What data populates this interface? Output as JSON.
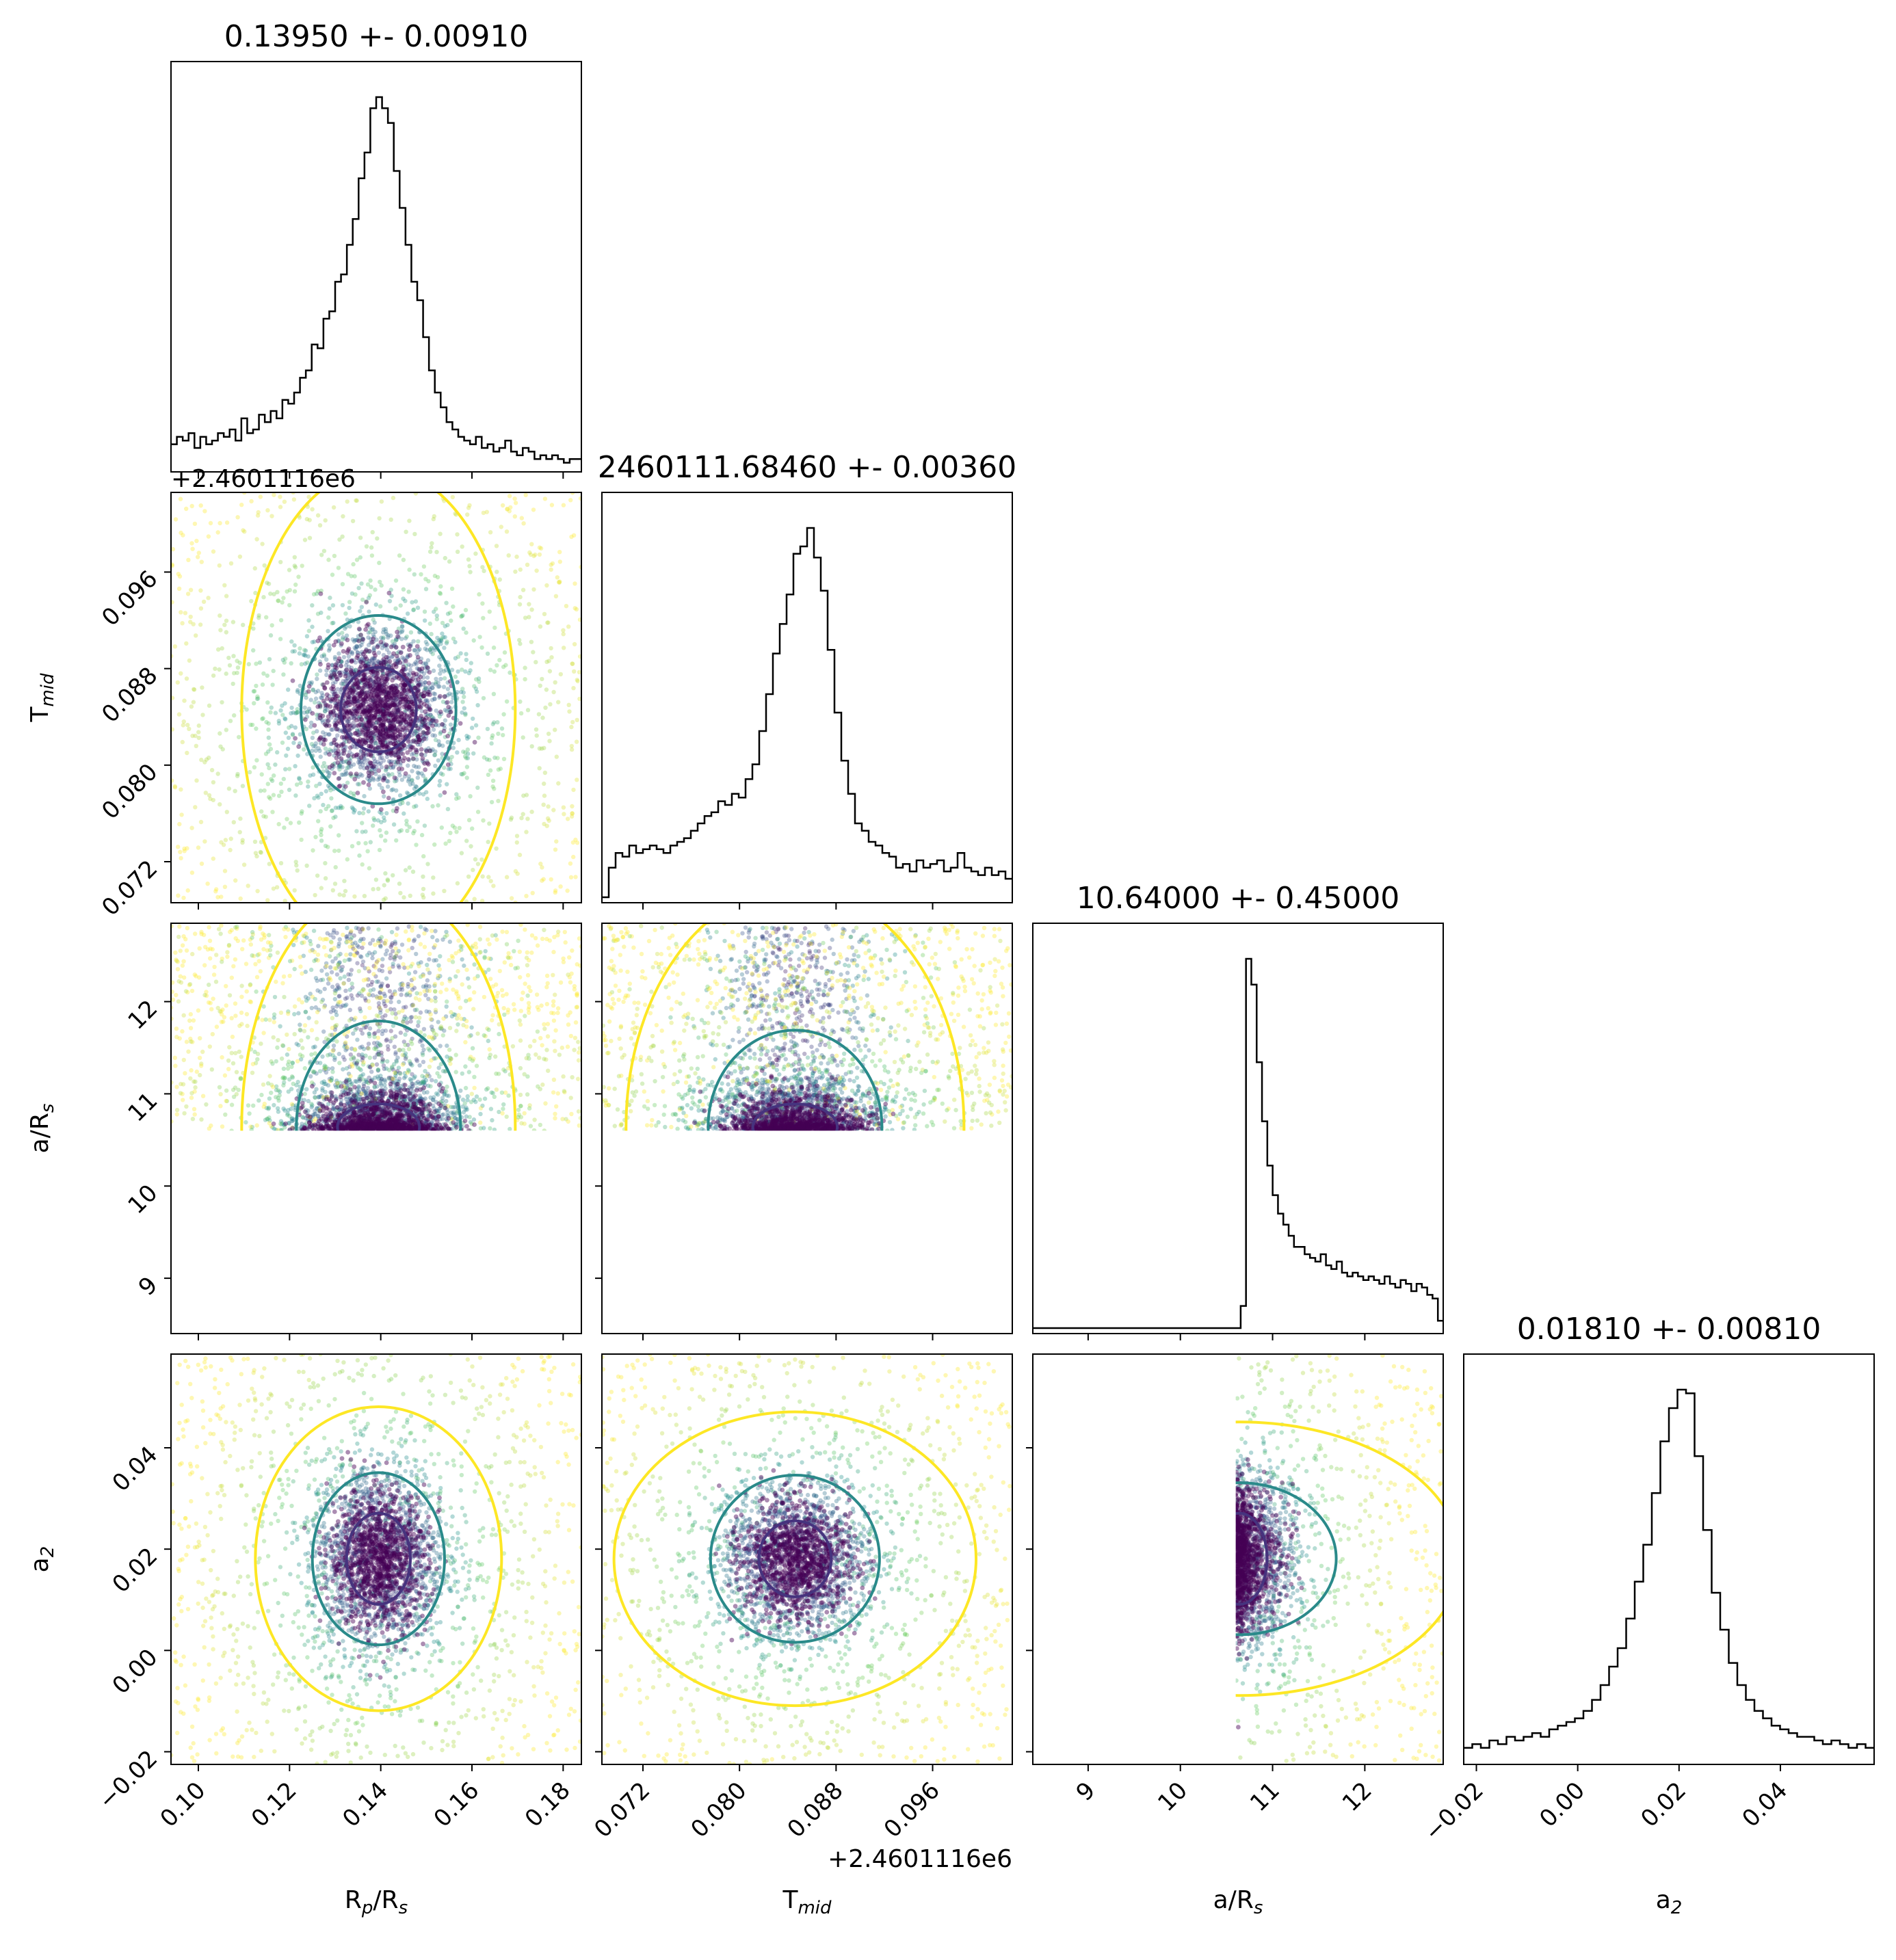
{
  "chart_data": {
    "type": "scatter",
    "kind": "corner-plot",
    "parameters": [
      {
        "key": "rp",
        "label": "R",
        "label_sub": "p",
        "label_tail": "/R",
        "label_tail_sub": "s",
        "title": "0.13950 +- 0.00910",
        "range": [
          0.094,
          0.184
        ],
        "ticks": [
          0.1,
          0.12,
          0.14,
          0.16,
          0.18
        ],
        "tick_labels": [
          "0.10",
          "0.12",
          "0.14",
          "0.16",
          "0.18"
        ]
      },
      {
        "key": "tmid",
        "label": "T",
        "label_sub": "mid",
        "label_tail": "",
        "label_tail_sub": "",
        "title": "2460111.68460 +- 0.00360",
        "range": [
          0.0686,
          0.1026
        ],
        "ticks": [
          0.072,
          0.08,
          0.088,
          0.096
        ],
        "tick_labels": [
          "0.072",
          "0.080",
          "0.088",
          "0.096"
        ],
        "offset_label": "+2.4601116e6"
      },
      {
        "key": "ars",
        "label": "a/R",
        "label_sub": "s",
        "label_tail": "",
        "label_tail_sub": "",
        "title": "10.64000 +- 0.45000",
        "range": [
          8.4,
          12.85
        ],
        "ticks": [
          9,
          10,
          11,
          12
        ],
        "tick_labels": [
          "9",
          "10",
          "11",
          "12"
        ]
      },
      {
        "key": "a2",
        "label": "a",
        "label_sub": "2",
        "label_tail": "",
        "label_tail_sub": "",
        "title": "0.01810 +- 0.00810",
        "range": [
          -0.0225,
          0.0585
        ],
        "ticks": [
          -0.02,
          0.0,
          0.02,
          0.04
        ],
        "tick_labels": [
          "−0.02",
          "0.00",
          "0.02",
          "0.04"
        ]
      }
    ],
    "histograms": [
      {
        "param": "rp",
        "bins": [
          0.094,
          0.184
        ],
        "counts": [
          0.06,
          0.08,
          0.07,
          0.09,
          0.05,
          0.08,
          0.06,
          0.07,
          0.09,
          0.08,
          0.1,
          0.07,
          0.13,
          0.09,
          0.1,
          0.14,
          0.12,
          0.15,
          0.13,
          0.18,
          0.17,
          0.2,
          0.24,
          0.26,
          0.33,
          0.32,
          0.4,
          0.42,
          0.5,
          0.52,
          0.6,
          0.67,
          0.78,
          0.85,
          0.97,
          1.0,
          0.97,
          0.93,
          0.8,
          0.7,
          0.6,
          0.5,
          0.45,
          0.35,
          0.26,
          0.2,
          0.16,
          0.12,
          0.1,
          0.08,
          0.07,
          0.06,
          0.08,
          0.05,
          0.06,
          0.04,
          0.05,
          0.07,
          0.04,
          0.03,
          0.05,
          0.04,
          0.02,
          0.03,
          0.02,
          0.03,
          0.02,
          0.01,
          0.02,
          0.02
        ]
      },
      {
        "param": "tmid",
        "bins": [
          0.0686,
          0.1026
        ],
        "counts": [
          0.0,
          0.08,
          0.12,
          0.11,
          0.14,
          0.12,
          0.13,
          0.14,
          0.13,
          0.12,
          0.14,
          0.15,
          0.16,
          0.18,
          0.2,
          0.22,
          0.23,
          0.26,
          0.25,
          0.28,
          0.27,
          0.32,
          0.36,
          0.45,
          0.55,
          0.66,
          0.74,
          0.82,
          0.93,
          0.95,
          1.0,
          0.92,
          0.83,
          0.67,
          0.5,
          0.37,
          0.28,
          0.2,
          0.18,
          0.15,
          0.14,
          0.12,
          0.11,
          0.08,
          0.09,
          0.07,
          0.1,
          0.08,
          0.09,
          0.1,
          0.07,
          0.08,
          0.12,
          0.08,
          0.07,
          0.06,
          0.08,
          0.06,
          0.07,
          0.05
        ]
      },
      {
        "param": "ars",
        "bins": [
          8.4,
          12.85
        ],
        "counts": [
          0.0,
          0.0,
          0.0,
          0.0,
          0.0,
          0.0,
          0.0,
          0.0,
          0.0,
          0.0,
          0.0,
          0.0,
          0.0,
          0.0,
          0.0,
          0.0,
          0.0,
          0.0,
          0.0,
          0.0,
          0.0,
          0.0,
          0.0,
          0.0,
          0.0,
          0.0,
          0.0,
          0.0,
          0.0,
          0.0,
          0.0,
          0.0,
          0.0,
          0.0,
          0.0,
          0.0,
          0.0,
          0.0,
          0.0,
          0.06,
          1.0,
          0.93,
          0.72,
          0.56,
          0.44,
          0.36,
          0.31,
          0.28,
          0.25,
          0.22,
          0.22,
          0.2,
          0.19,
          0.18,
          0.2,
          0.17,
          0.16,
          0.18,
          0.15,
          0.14,
          0.15,
          0.14,
          0.13,
          0.14,
          0.13,
          0.12,
          0.14,
          0.12,
          0.11,
          0.13,
          0.12,
          0.1,
          0.12,
          0.11,
          0.09,
          0.08,
          0.02
        ]
      },
      {
        "param": "a2",
        "bins": [
          -0.0225,
          0.0585
        ],
        "counts": [
          0.03,
          0.04,
          0.03,
          0.05,
          0.04,
          0.06,
          0.05,
          0.06,
          0.07,
          0.06,
          0.08,
          0.09,
          0.1,
          0.11,
          0.13,
          0.16,
          0.2,
          0.25,
          0.3,
          0.38,
          0.48,
          0.58,
          0.72,
          0.86,
          0.95,
          1.0,
          0.99,
          0.82,
          0.62,
          0.45,
          0.35,
          0.26,
          0.2,
          0.16,
          0.13,
          0.11,
          0.09,
          0.08,
          0.07,
          0.06,
          0.06,
          0.05,
          0.04,
          0.05,
          0.04,
          0.03,
          0.04,
          0.03
        ]
      }
    ],
    "pairs": [
      {
        "x": "rp",
        "y": "tmid",
        "center": [
          0.1395,
          0.0846
        ],
        "contour_inner": {
          "rx": 0.0083,
          "ry": 0.0035
        },
        "contour_mid": {
          "rx": 0.017,
          "ry": 0.0078
        },
        "contour_outer": {
          "rx": 0.03,
          "ry": 0.02
        }
      },
      {
        "x": "rp",
        "y": "ars",
        "center": [
          0.1395,
          10.64
        ],
        "contour_inner": {
          "rx": 0.009,
          "ry": 0.25
        },
        "contour_mid": {
          "rx": 0.018,
          "ry": 1.15
        },
        "contour_outer": {
          "rx": 0.03,
          "ry": 2.6
        }
      },
      {
        "x": "rp",
        "y": "a2",
        "center": [
          0.1395,
          0.0181
        ],
        "contour_inner": {
          "rx": 0.007,
          "ry": 0.009
        },
        "contour_mid": {
          "rx": 0.0145,
          "ry": 0.017
        },
        "contour_outer": {
          "rx": 0.027,
          "ry": 0.03
        }
      },
      {
        "x": "tmid",
        "y": "ars",
        "center": [
          0.0846,
          10.64
        ],
        "contour_inner": {
          "rx": 0.0035,
          "ry": 0.25
        },
        "contour_mid": {
          "rx": 0.0072,
          "ry": 1.05
        },
        "contour_outer": {
          "rx": 0.014,
          "ry": 2.6
        }
      },
      {
        "x": "tmid",
        "y": "a2",
        "center": [
          0.0846,
          0.0181
        ],
        "contour_inner": {
          "rx": 0.003,
          "ry": 0.0075
        },
        "contour_mid": {
          "rx": 0.007,
          "ry": 0.0165
        },
        "contour_outer": {
          "rx": 0.015,
          "ry": 0.029
        }
      },
      {
        "x": "ars",
        "y": "a2",
        "center": [
          10.64,
          0.0181
        ],
        "contour_inner": {
          "rx": 0.3,
          "ry": 0.009
        },
        "contour_mid": {
          "rx": 1.05,
          "ry": 0.015
        },
        "contour_outer": {
          "rx": 2.4,
          "ry": 0.027
        }
      }
    ],
    "ars_lower_cutoff": 10.6,
    "contour_colors": {
      "inner": "#46337e",
      "mid": "#2a8a8a",
      "outer": "#fde725"
    },
    "grid": false,
    "legend": "none"
  }
}
